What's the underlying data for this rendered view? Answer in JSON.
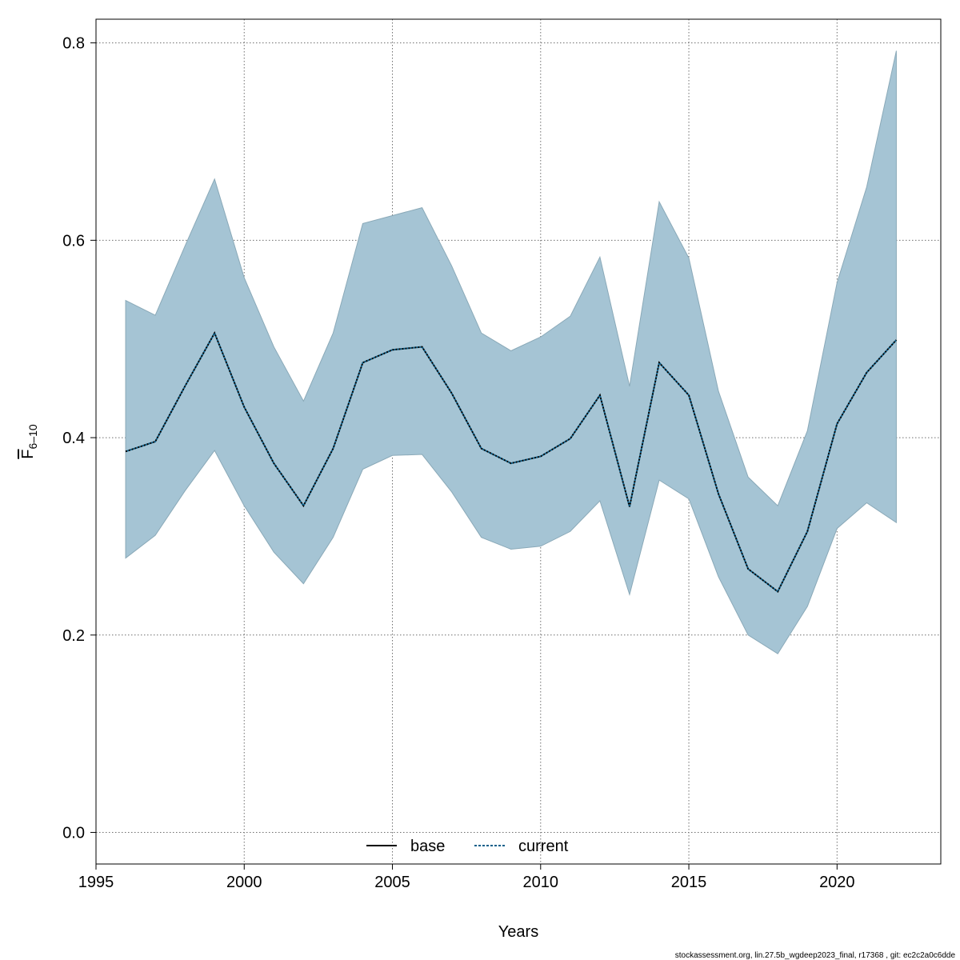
{
  "chart_data": {
    "type": "area",
    "xlabel": "Years",
    "ylabel": {
      "base": "F",
      "subscript": "6–10"
    },
    "xlim": [
      1995,
      2023.5
    ],
    "ylim": [
      -0.032,
      0.824
    ],
    "xticks": [
      1995,
      2000,
      2005,
      2010,
      2015,
      2020
    ],
    "xtick_labels": [
      "1995",
      "2000",
      "2005",
      "2010",
      "2015",
      "2020"
    ],
    "yticks": [
      0.0,
      0.2,
      0.4,
      0.6,
      0.8
    ],
    "ytick_labels": [
      "0.0",
      "0.2",
      "0.4",
      "0.6",
      "0.8"
    ],
    "grid": true,
    "legend_position": "bottom-center",
    "x": [
      1996,
      1997,
      1998,
      1999,
      2000,
      2001,
      2002,
      2003,
      2004,
      2005,
      2006,
      2007,
      2008,
      2009,
      2010,
      2011,
      2012,
      2013,
      2014,
      2015,
      2016,
      2017,
      2018,
      2019,
      2020,
      2021,
      2022
    ],
    "series": [
      {
        "name": "current",
        "style": "dotted",
        "color": "#0b5f8a",
        "values": [
          0.386,
          0.396,
          0.452,
          0.506,
          0.431,
          0.374,
          0.331,
          0.389,
          0.476,
          0.489,
          0.492,
          0.445,
          0.389,
          0.374,
          0.381,
          0.399,
          0.443,
          0.33,
          0.476,
          0.443,
          0.343,
          0.267,
          0.244,
          0.305,
          0.414,
          0.466,
          0.499
        ],
        "lower": [
          0.278,
          0.301,
          0.346,
          0.387,
          0.331,
          0.284,
          0.252,
          0.299,
          0.368,
          0.382,
          0.383,
          0.345,
          0.299,
          0.287,
          0.29,
          0.305,
          0.336,
          0.241,
          0.357,
          0.338,
          0.259,
          0.2,
          0.181,
          0.229,
          0.308,
          0.334,
          0.314
        ],
        "upper": [
          0.539,
          0.524,
          0.594,
          0.662,
          0.562,
          0.492,
          0.437,
          0.506,
          0.617,
          0.625,
          0.633,
          0.574,
          0.506,
          0.488,
          0.502,
          0.523,
          0.583,
          0.452,
          0.639,
          0.582,
          0.447,
          0.36,
          0.331,
          0.407,
          0.557,
          0.654,
          0.792
        ]
      }
    ],
    "legend": [
      {
        "label": "base",
        "style": "solid",
        "color": "#000000"
      },
      {
        "label": "current",
        "style": "dotted",
        "color": "#0b5f8a"
      }
    ],
    "band_color": "#a5c4d4",
    "band_stroke": "#8aa9b8"
  },
  "footer": "stockassessment.org, lin.27.5b_wgdeep2023_final, r17368 , git: ec2c2a0c6dde"
}
